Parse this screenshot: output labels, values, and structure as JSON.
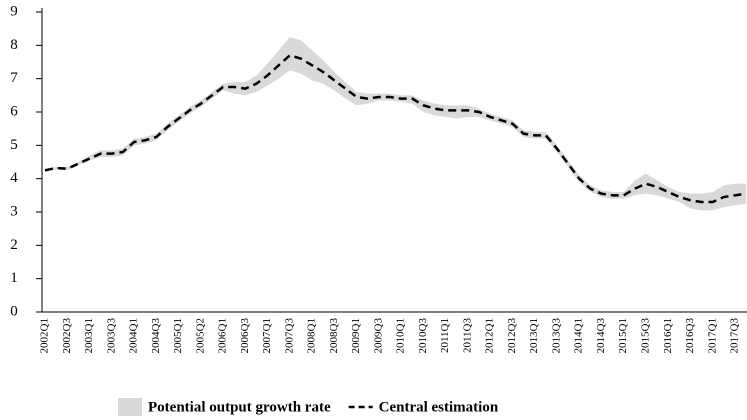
{
  "chart_data": {
    "type": "line",
    "categories": [
      "2002Q1",
      null,
      "2002Q3",
      null,
      "2003Q1",
      null,
      "2003Q3",
      null,
      "2004Q1",
      null,
      "2004Q3",
      null,
      "2005Q1",
      null,
      "2005Q2",
      null,
      "2006Q1",
      null,
      "2006Q3",
      null,
      "2007Q1",
      null,
      "2007Q3",
      null,
      "2008Q1",
      null,
      "2008Q3",
      null,
      "2009Q1",
      null,
      "2009Q3",
      null,
      "2010Q1",
      null,
      "2010Q3",
      null,
      "2011Q1",
      null,
      "2011Q3",
      null,
      "2012Q1",
      null,
      "2012Q3",
      null,
      "2013Q1",
      null,
      "2013Q3",
      null,
      "2014Q1",
      null,
      "2014Q3",
      null,
      "2015Q1",
      null,
      "2015Q3",
      null,
      "2016Q1",
      null,
      "2016Q3",
      null,
      "2017Q1",
      null,
      "2017Q3",
      null
    ],
    "series": [
      {
        "name": "Potential output growth rate",
        "color": "#d9d9d9",
        "upper": [
          4.3,
          4.35,
          4.35,
          4.5,
          4.7,
          4.85,
          4.85,
          4.9,
          5.2,
          5.25,
          5.35,
          5.65,
          5.9,
          6.15,
          6.35,
          6.6,
          6.85,
          6.9,
          6.9,
          7.1,
          7.45,
          7.85,
          8.25,
          8.15,
          7.85,
          7.55,
          7.2,
          6.9,
          6.6,
          6.55,
          6.55,
          6.55,
          6.5,
          6.5,
          6.35,
          6.25,
          6.2,
          6.2,
          6.2,
          6.1,
          5.95,
          5.85,
          5.75,
          5.45,
          5.4,
          5.4,
          5.0,
          4.55,
          4.1,
          3.8,
          3.65,
          3.6,
          3.6,
          3.95,
          4.15,
          3.95,
          3.75,
          3.6,
          3.55,
          3.55,
          3.6,
          3.8,
          3.85,
          3.85
        ],
        "lower": [
          4.2,
          4.28,
          4.25,
          4.4,
          4.55,
          4.65,
          4.65,
          4.7,
          5.0,
          5.05,
          5.15,
          5.45,
          5.7,
          5.95,
          6.15,
          6.4,
          6.65,
          6.55,
          6.5,
          6.6,
          6.8,
          7.0,
          7.25,
          7.15,
          6.95,
          6.85,
          6.65,
          6.4,
          6.2,
          6.25,
          6.35,
          6.35,
          6.3,
          6.25,
          6.0,
          5.9,
          5.85,
          5.8,
          5.85,
          5.85,
          5.75,
          5.65,
          5.55,
          5.25,
          5.2,
          5.2,
          4.8,
          4.35,
          3.9,
          3.6,
          3.45,
          3.4,
          3.4,
          3.5,
          3.55,
          3.5,
          3.4,
          3.3,
          3.1,
          3.05,
          3.05,
          3.15,
          3.2,
          3.25
        ]
      },
      {
        "name": "Central estimation",
        "color": "#000000",
        "dashed": true,
        "values": [
          4.25,
          4.32,
          4.3,
          4.45,
          4.6,
          4.75,
          4.75,
          4.8,
          5.1,
          5.15,
          5.25,
          5.55,
          5.8,
          6.05,
          6.25,
          6.5,
          6.75,
          6.75,
          6.7,
          6.85,
          7.1,
          7.4,
          7.7,
          7.6,
          7.4,
          7.2,
          6.95,
          6.7,
          6.45,
          6.4,
          6.45,
          6.45,
          6.4,
          6.4,
          6.2,
          6.1,
          6.05,
          6.05,
          6.05,
          6.0,
          5.85,
          5.75,
          5.65,
          5.35,
          5.3,
          5.3,
          4.9,
          4.45,
          4.0,
          3.7,
          3.55,
          3.5,
          3.5,
          3.7,
          3.85,
          3.75,
          3.6,
          3.45,
          3.35,
          3.3,
          3.3,
          3.45,
          3.5,
          3.55
        ]
      }
    ],
    "ylim": [
      0,
      9
    ],
    "yticks": [
      0,
      1,
      2,
      3,
      4,
      5,
      6,
      7,
      8,
      9
    ]
  }
}
